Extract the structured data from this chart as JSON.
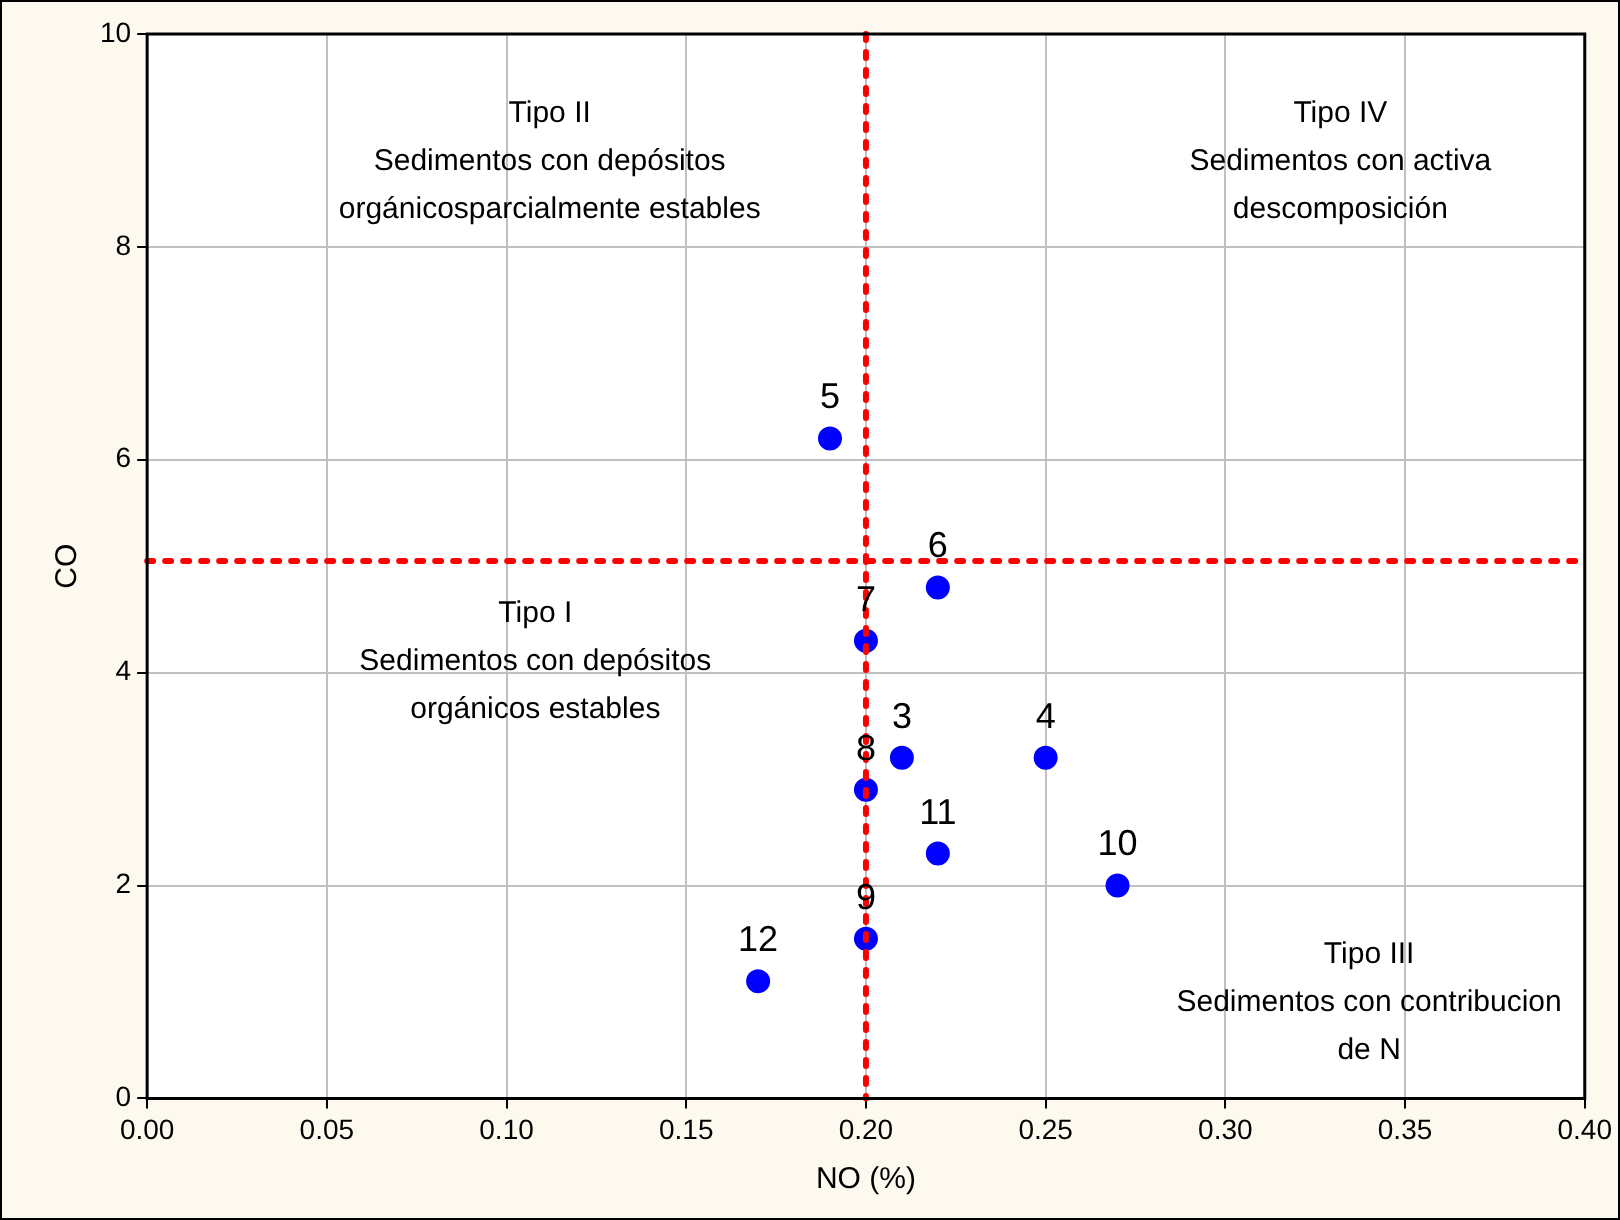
{
  "chart_data": {
    "type": "scatter",
    "xlabel": "NO (%)",
    "ylabel": "CO",
    "x": [
      0.19,
      0.22,
      0.2,
      0.21,
      0.25,
      0.2,
      0.22,
      0.27,
      0.2,
      0.17
    ],
    "values": [
      6.2,
      4.8,
      4.3,
      3.2,
      3.2,
      2.9,
      2.3,
      2.0,
      1.5,
      1.1
    ],
    "color": "#0000ff",
    "marker": "circle",
    "xlim": [
      0,
      0.4
    ],
    "xticks": [
      {
        "value": 0,
        "label": "0.00"
      },
      {
        "value": 0.05,
        "label": "0.05"
      },
      {
        "value": 0.1,
        "label": "0.10"
      },
      {
        "value": 0.15,
        "label": "0.15"
      },
      {
        "value": 0.2,
        "label": "0.20"
      },
      {
        "value": 0.25,
        "label": "0.25"
      },
      {
        "value": 0.3,
        "label": "0.30"
      },
      {
        "value": 0.35,
        "label": "0.35"
      },
      {
        "value": 0.4,
        "label": "0.40"
      }
    ],
    "ylim": [
      0,
      10
    ],
    "yticks": [
      0,
      2,
      4,
      6,
      8,
      10
    ],
    "grid": true,
    "legend": false,
    "ref_lines": [
      {
        "axis": "x",
        "value": 0.2,
        "color": "#ff0000",
        "line_style": "dotted"
      },
      {
        "axis": "y",
        "value": 5.05,
        "color": "#ff0000",
        "line_style": "dotted"
      }
    ],
    "annotations": [
      {
        "text": "5",
        "x": 0.19,
        "y": 6.2
      },
      {
        "text": "6",
        "x": 0.22,
        "y": 4.8
      },
      {
        "text": "7",
        "x": 0.2,
        "y": 4.3
      },
      {
        "text": "3",
        "x": 0.21,
        "y": 3.2
      },
      {
        "text": "4",
        "x": 0.25,
        "y": 3.2
      },
      {
        "text": "8",
        "x": 0.2,
        "y": 2.9
      },
      {
        "text": "11",
        "x": 0.22,
        "y": 2.3
      },
      {
        "text": "10",
        "x": 0.27,
        "y": 2.0
      },
      {
        "text": "9",
        "x": 0.2,
        "y": 1.5
      },
      {
        "text": "12",
        "x": 0.17,
        "y": 1.1
      },
      "Tipo II\nSedimentos con depósitos\norgánicosparcialmente estables",
      "Tipo IV\nSedimentos con activa\ndescomposición",
      "Tipo I\nSedimentos con depósitos\norgánicos estables",
      "Tipo III\nSedimentos con contribucion\nde N"
    ]
  }
}
